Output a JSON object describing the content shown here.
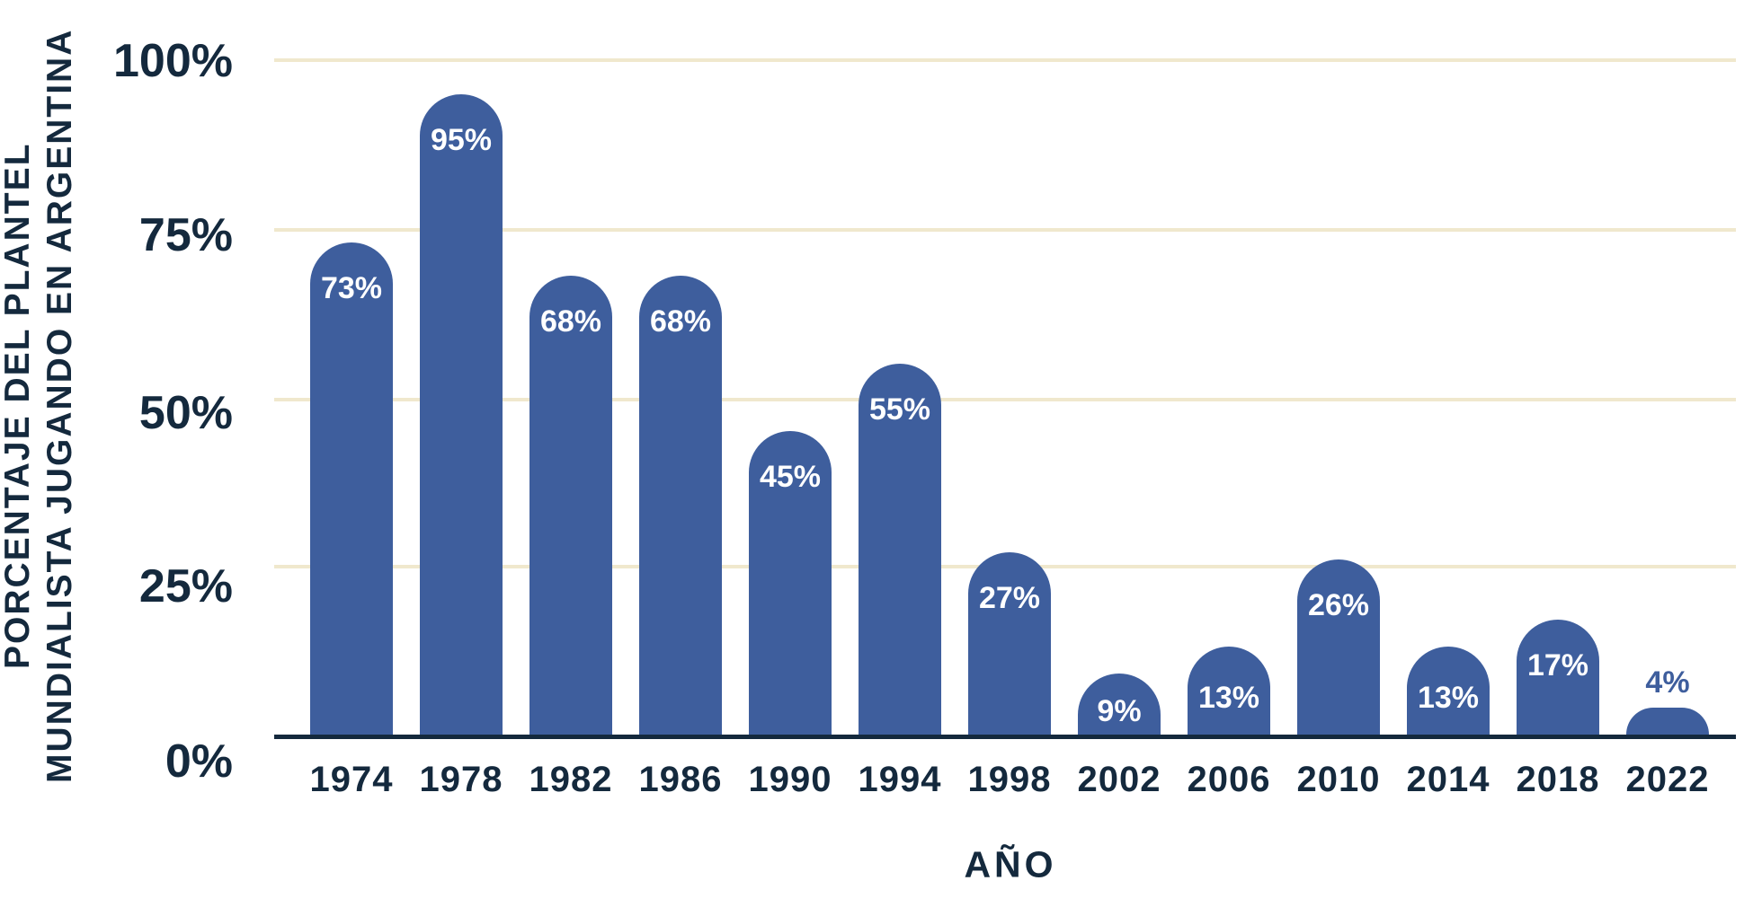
{
  "colors": {
    "bar": "#3E5E9D",
    "navy": "#14293D",
    "gridline": "#F0E8CD",
    "bar_label_inside": "#FFFFFF",
    "background": "#FFFFFF"
  },
  "y_axis": {
    "title_line1": "PORCENTAJE DEL PLANTEL",
    "title_line2": "MUNDIALISTA JUGANDO EN ARGENTINA",
    "ticks": [
      "100%",
      "75%",
      "50%",
      "25%",
      "0%"
    ]
  },
  "x_axis": {
    "title": "AÑO"
  },
  "chart_data": {
    "type": "bar",
    "title": "",
    "categories": [
      "1974",
      "1978",
      "1982",
      "1986",
      "1990",
      "1994",
      "1998",
      "2002",
      "2006",
      "2010",
      "2014",
      "2018",
      "2022"
    ],
    "values": [
      73,
      95,
      68,
      68,
      45,
      55,
      27,
      9,
      13,
      26,
      13,
      17,
      4
    ],
    "data_labels": [
      "73%",
      "95%",
      "68%",
      "68%",
      "45%",
      "55%",
      "27%",
      "9%",
      "13%",
      "26%",
      "13%",
      "17%",
      "4%"
    ],
    "xlabel": "AÑO",
    "ylabel": "PORCENTAJE DEL PLANTEL MUNDIALISTA JUGANDO EN ARGENTINA",
    "ylim": [
      0,
      100
    ],
    "yticks_percent": [
      100,
      75,
      50,
      25,
      0
    ],
    "grid": true,
    "legend": false
  }
}
